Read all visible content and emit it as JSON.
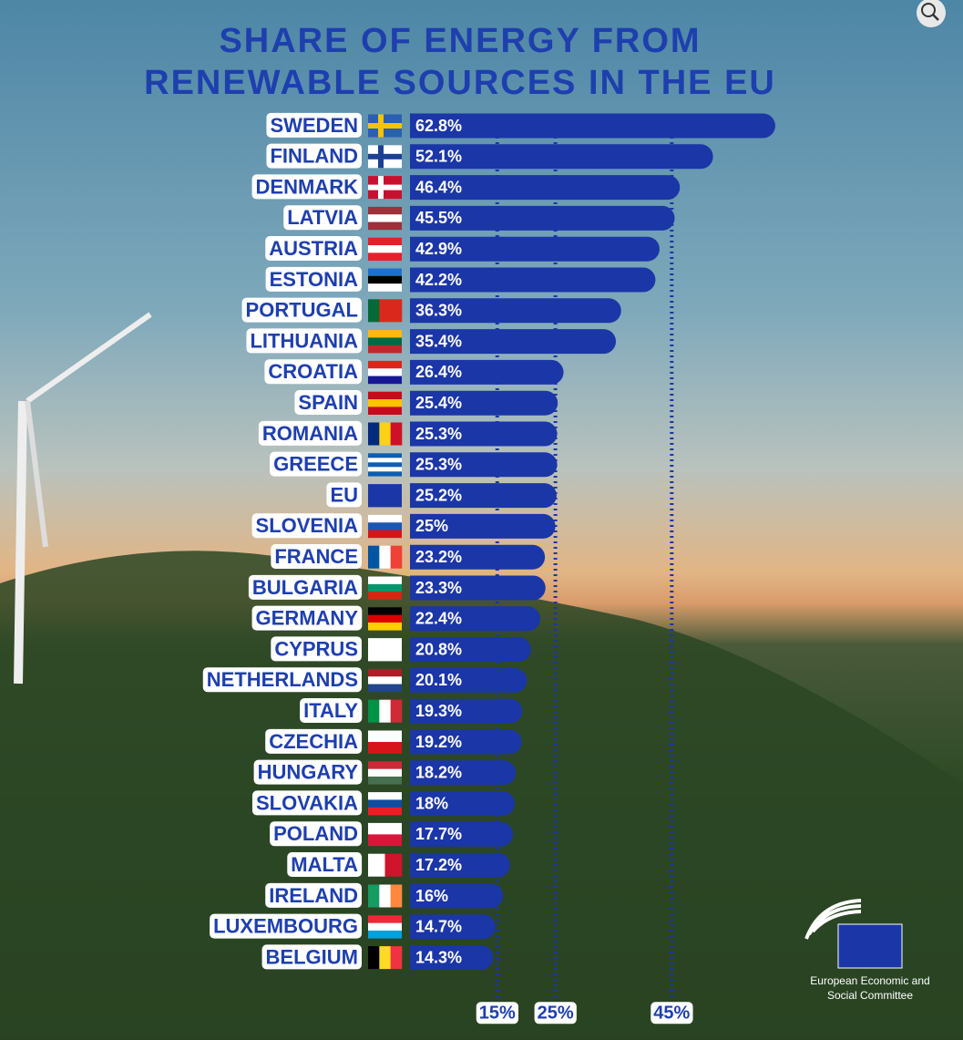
{
  "chart_data": {
    "type": "barh",
    "title": "SHARE OF ENERGY FROM RENEWABLE SOURCES IN THE EU",
    "categories": [
      "SWEDEN",
      "FINLAND",
      "DENMARK",
      "LATVIA",
      "AUSTRIA",
      "ESTONIA",
      "PORTUGAL",
      "LITHUANIA",
      "CROATIA",
      "SPAIN",
      "ROMANIA",
      "GREECE",
      "EU",
      "SLOVENIA",
      "FRANCE",
      "BULGARIA",
      "GERMANY",
      "CYPRUS",
      "NETHERLANDS",
      "ITALY",
      "CZECHIA",
      "HUNGARY",
      "SLOVAKIA",
      "POLAND",
      "MALTA",
      "IRELAND",
      "LUXEMBOURG",
      "BELGIUM"
    ],
    "values": [
      62.8,
      52.1,
      46.4,
      45.5,
      42.9,
      42.2,
      36.3,
      35.4,
      26.4,
      25.4,
      25.3,
      25.3,
      25.2,
      25,
      23.2,
      23.3,
      22.4,
      20.8,
      20.1,
      19.3,
      19.2,
      18.2,
      18,
      17.7,
      17.2,
      16,
      14.7,
      14.3
    ],
    "value_labels": [
      "62.8%",
      "52.1%",
      "46.4%",
      "45.5%",
      "42.9%",
      "42.2%",
      "36.3%",
      "35.4%",
      "26.4%",
      "25.4%",
      "25.3%",
      "25.3%",
      "25.2%",
      "25%",
      "23.2%",
      "23.3%",
      "22.4%",
      "20.8%",
      "20.1%",
      "19.3%",
      "19.2%",
      "18.2%",
      "18%",
      "17.7%",
      "17.2%",
      "16%",
      "14.7%",
      "14.3%"
    ],
    "color": "#1b36a6",
    "xlim": [
      0,
      65
    ],
    "xticks": [
      {
        "value": 15,
        "label": "15%"
      },
      {
        "value": 25,
        "label": "25%"
      },
      {
        "value": 45,
        "label": "45%"
      }
    ]
  },
  "logo": {
    "text": "European Economic and Social Committee"
  }
}
